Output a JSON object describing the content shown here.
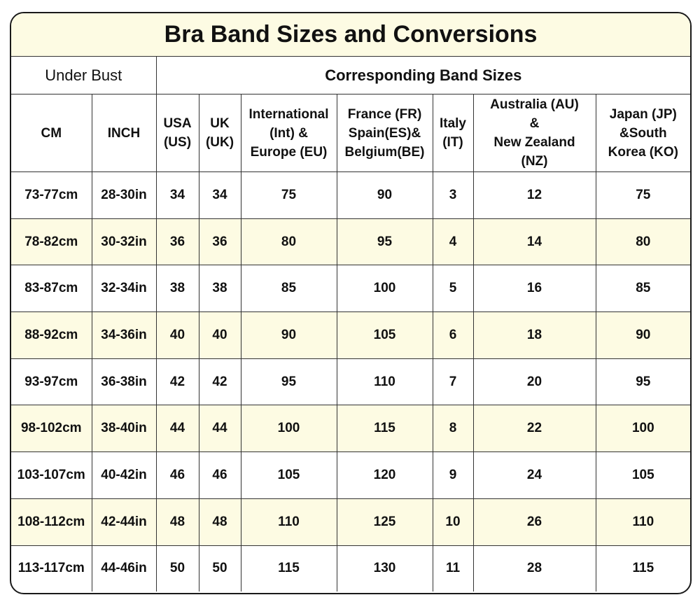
{
  "title": "Bra Band Sizes and Conversions",
  "group_headers": [
    "Under Bust",
    "Corresponding Band Sizes"
  ],
  "columns": [
    "CM",
    "INCH",
    "USA\n(US)",
    "UK\n(UK)",
    "International\n(Int) &\nEurope (EU)",
    "France (FR)\nSpain(ES)&\nBelgium(BE)",
    "Italy\n(IT)",
    "Australia (AU)\n&\nNew Zealand\n(NZ)",
    "Japan (JP)\n&South\nKorea (KO)"
  ],
  "rows": [
    [
      "73-77cm",
      "28-30in",
      34,
      34,
      75,
      90,
      3,
      12,
      75
    ],
    [
      "78-82cm",
      "30-32in",
      36,
      36,
      80,
      95,
      4,
      14,
      80
    ],
    [
      "83-87cm",
      "32-34in",
      38,
      38,
      85,
      100,
      5,
      16,
      85
    ],
    [
      "88-92cm",
      "34-36in",
      40,
      40,
      90,
      105,
      6,
      18,
      90
    ],
    [
      "93-97cm",
      "36-38in",
      42,
      42,
      95,
      110,
      7,
      20,
      95
    ],
    [
      "98-102cm",
      "38-40in",
      44,
      44,
      100,
      115,
      8,
      22,
      100
    ],
    [
      "103-107cm",
      "40-42in",
      46,
      46,
      105,
      120,
      9,
      24,
      105
    ],
    [
      "108-112cm",
      "42-44in",
      48,
      48,
      110,
      125,
      10,
      26,
      110
    ],
    [
      "113-117cm",
      "44-46in",
      50,
      50,
      115,
      130,
      11,
      28,
      115
    ]
  ]
}
